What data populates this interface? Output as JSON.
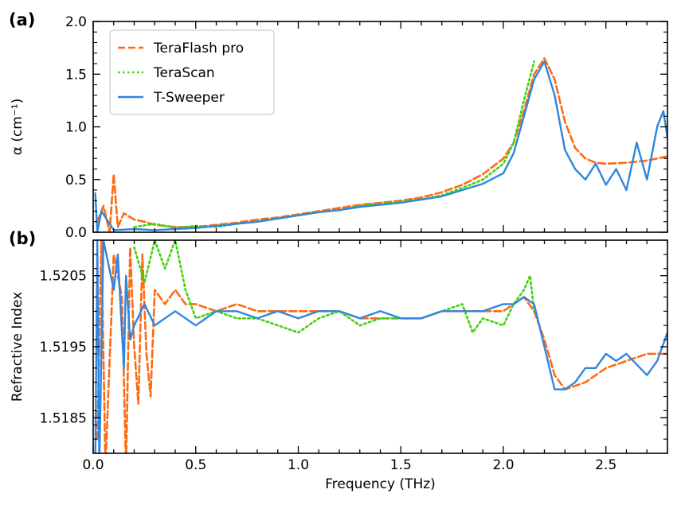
{
  "colors": {
    "teraflash": "#ff6a13",
    "terascan": "#3fd40b",
    "tsweeper": "#2f86e0",
    "axis": "#000000",
    "background": "#ffffff"
  },
  "chart_data": [
    {
      "panel_label": "(a)",
      "type": "line",
      "ylabel": "α (cm⁻¹)",
      "xlabel": "",
      "xlim": [
        0,
        2.8
      ],
      "ylim": [
        0,
        2.0
      ],
      "yticks": [
        0.0,
        0.5,
        1.0,
        1.5,
        2.0
      ],
      "ytick_labels": [
        "0.0",
        "0.5",
        "1.0",
        "1.5",
        "2.0"
      ],
      "xticks": [
        0,
        0.5,
        1.0,
        1.5,
        2.0,
        2.5
      ],
      "grid": false,
      "legend_position": "top-left",
      "legend": [
        "TeraFlash pro",
        "TeraScan",
        "T-Sweeper"
      ],
      "series": [
        {
          "name": "TeraFlash pro",
          "style": "dashed",
          "x": [
            0.02,
            0.05,
            0.08,
            0.1,
            0.12,
            0.15,
            0.2,
            0.25,
            0.3,
            0.4,
            0.5,
            0.6,
            0.7,
            0.8,
            0.9,
            1.0,
            1.1,
            1.2,
            1.3,
            1.4,
            1.5,
            1.6,
            1.7,
            1.8,
            1.9,
            2.0,
            2.05,
            2.1,
            2.15,
            2.2,
            2.25,
            2.3,
            2.35,
            2.4,
            2.45,
            2.5,
            2.6,
            2.7,
            2.8
          ],
          "y": [
            0.1,
            0.25,
            0.0,
            0.55,
            0.05,
            0.18,
            0.12,
            0.1,
            0.07,
            0.05,
            0.05,
            0.07,
            0.09,
            0.12,
            0.14,
            0.17,
            0.2,
            0.23,
            0.26,
            0.28,
            0.3,
            0.33,
            0.38,
            0.45,
            0.55,
            0.7,
            0.85,
            1.15,
            1.5,
            1.65,
            1.45,
            1.05,
            0.8,
            0.7,
            0.66,
            0.65,
            0.66,
            0.68,
            0.72
          ]
        },
        {
          "name": "TeraScan",
          "style": "dotted",
          "x": [
            0.2,
            0.3,
            0.4,
            0.5,
            0.6,
            0.7,
            0.8,
            0.9,
            1.0,
            1.1,
            1.2,
            1.3,
            1.4,
            1.5,
            1.6,
            1.7,
            1.8,
            1.9,
            2.0,
            2.05,
            2.1,
            2.15
          ],
          "y": [
            0.05,
            0.08,
            0.04,
            0.06,
            0.05,
            0.08,
            0.1,
            0.13,
            0.16,
            0.19,
            0.21,
            0.25,
            0.27,
            0.29,
            0.31,
            0.35,
            0.42,
            0.5,
            0.65,
            0.85,
            1.25,
            1.62
          ]
        },
        {
          "name": "T-Sweeper",
          "style": "solid",
          "x": [
            0.01,
            0.02,
            0.04,
            0.1,
            0.2,
            0.3,
            0.4,
            0.5,
            0.6,
            0.7,
            0.8,
            0.9,
            1.0,
            1.1,
            1.2,
            1.3,
            1.4,
            1.5,
            1.6,
            1.7,
            1.8,
            1.9,
            2.0,
            2.05,
            2.1,
            2.15,
            2.2,
            2.25,
            2.3,
            2.35,
            2.4,
            2.45,
            2.5,
            2.55,
            2.6,
            2.65,
            2.7,
            2.75,
            2.78,
            2.8
          ],
          "y": [
            0.37,
            0.0,
            0.2,
            0.02,
            0.03,
            0.02,
            0.03,
            0.04,
            0.06,
            0.08,
            0.1,
            0.13,
            0.16,
            0.19,
            0.21,
            0.24,
            0.26,
            0.28,
            0.31,
            0.34,
            0.4,
            0.46,
            0.56,
            0.75,
            1.1,
            1.45,
            1.62,
            1.3,
            0.78,
            0.6,
            0.5,
            0.65,
            0.45,
            0.6,
            0.4,
            0.85,
            0.5,
            1.0,
            1.15,
            0.9
          ]
        }
      ]
    },
    {
      "panel_label": "(b)",
      "type": "line",
      "ylabel": "Refractive Index",
      "xlabel": "Frequency (THz)",
      "xlim": [
        0,
        2.8
      ],
      "ylim": [
        1.518,
        1.521
      ],
      "yticks": [
        1.5185,
        1.5195,
        1.5205
      ],
      "ytick_labels": [
        "1.5185",
        "1.5195",
        "1.5205"
      ],
      "xticks": [
        0,
        0.5,
        1.0,
        1.5,
        2.0,
        2.5
      ],
      "xtick_labels": [
        "0.0",
        "0.5",
        "1.0",
        "1.5",
        "2.0",
        "2.5"
      ],
      "grid": false,
      "series": [
        {
          "name": "TeraFlash pro",
          "style": "dashed",
          "x": [
            0.02,
            0.04,
            0.06,
            0.1,
            0.14,
            0.16,
            0.18,
            0.2,
            0.22,
            0.24,
            0.26,
            0.28,
            0.3,
            0.35,
            0.4,
            0.45,
            0.5,
            0.6,
            0.7,
            0.8,
            0.9,
            1.0,
            1.1,
            1.2,
            1.3,
            1.4,
            1.5,
            1.6,
            1.7,
            1.8,
            1.9,
            2.0,
            2.05,
            2.1,
            2.15,
            2.2,
            2.25,
            2.3,
            2.4,
            2.5,
            2.6,
            2.7,
            2.8
          ],
          "y": [
            1.5182,
            1.521,
            1.5178,
            1.5208,
            1.5202,
            1.5178,
            1.5209,
            1.5195,
            1.5187,
            1.5208,
            1.5194,
            1.5188,
            1.5203,
            1.5201,
            1.5203,
            1.5201,
            1.5201,
            1.52,
            1.5201,
            1.52,
            1.52,
            1.52,
            1.52,
            1.52,
            1.5199,
            1.5199,
            1.5199,
            1.5199,
            1.52,
            1.52,
            1.52,
            1.52,
            1.5201,
            1.5202,
            1.52,
            1.5196,
            1.5191,
            1.5189,
            1.519,
            1.5192,
            1.5193,
            1.5194,
            1.5194
          ]
        },
        {
          "name": "TeraScan",
          "style": "dotted",
          "x": [
            0.2,
            0.25,
            0.3,
            0.35,
            0.4,
            0.45,
            0.5,
            0.6,
            0.7,
            0.8,
            0.9,
            1.0,
            1.1,
            1.2,
            1.3,
            1.4,
            1.5,
            1.6,
            1.7,
            1.8,
            1.85,
            1.9,
            2.0,
            2.05,
            2.1,
            2.13,
            2.15
          ],
          "y": [
            1.5209,
            1.5204,
            1.521,
            1.5206,
            1.521,
            1.5203,
            1.5199,
            1.52,
            1.5199,
            1.5199,
            1.5198,
            1.5197,
            1.5199,
            1.52,
            1.5198,
            1.5199,
            1.5199,
            1.5199,
            1.52,
            1.5201,
            1.5197,
            1.5199,
            1.5198,
            1.5201,
            1.5203,
            1.5205,
            1.52
          ]
        },
        {
          "name": "T-Sweeper",
          "style": "solid",
          "x": [
            0.01,
            0.02,
            0.03,
            0.05,
            0.1,
            0.12,
            0.14,
            0.15,
            0.16,
            0.18,
            0.2,
            0.25,
            0.3,
            0.4,
            0.5,
            0.6,
            0.7,
            0.8,
            0.9,
            1.0,
            1.1,
            1.2,
            1.3,
            1.4,
            1.5,
            1.6,
            1.7,
            1.8,
            1.9,
            2.0,
            2.05,
            2.1,
            2.15,
            2.2,
            2.25,
            2.3,
            2.35,
            2.4,
            2.45,
            2.5,
            2.55,
            2.6,
            2.7,
            2.75,
            2.8
          ],
          "y": [
            1.5178,
            1.521,
            1.5178,
            1.521,
            1.5203,
            1.5208,
            1.5197,
            1.5192,
            1.5205,
            1.5196,
            1.5198,
            1.5201,
            1.5198,
            1.52,
            1.5198,
            1.52,
            1.52,
            1.5199,
            1.52,
            1.5199,
            1.52,
            1.52,
            1.5199,
            1.52,
            1.5199,
            1.5199,
            1.52,
            1.52,
            1.52,
            1.5201,
            1.5201,
            1.5202,
            1.5201,
            1.5195,
            1.5189,
            1.5189,
            1.519,
            1.5192,
            1.5192,
            1.5194,
            1.5193,
            1.5194,
            1.5191,
            1.5193,
            1.5197
          ]
        }
      ]
    }
  ]
}
